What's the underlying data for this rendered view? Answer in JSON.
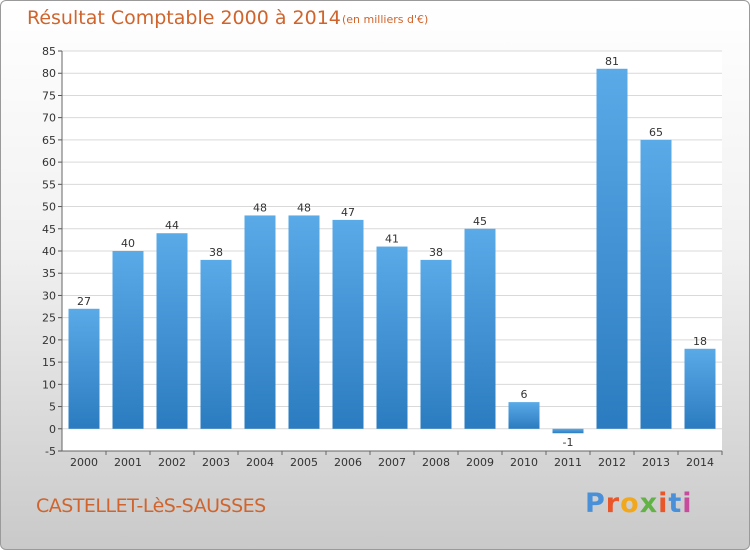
{
  "header": {
    "title": "Résultat Comptable 2000 à 2014",
    "subtitle": "(en milliers d'€)"
  },
  "footer": {
    "town": "CASTELLET-LèS-SAUSSES",
    "logo": "Proxiti",
    "logo_colors": [
      "#4a90d9",
      "#e8562a",
      "#f2a81d",
      "#62b245",
      "#e8562a",
      "#4a90d9",
      "#c84c9e"
    ]
  },
  "chart_data": {
    "type": "bar",
    "categories": [
      "2000",
      "2001",
      "2002",
      "2003",
      "2004",
      "2005",
      "2006",
      "2007",
      "2008",
      "2009",
      "2010",
      "2011",
      "2012",
      "2013",
      "2014"
    ],
    "values": [
      27,
      40,
      44,
      38,
      48,
      48,
      47,
      41,
      38,
      45,
      6,
      -1,
      81,
      65,
      18
    ],
    "title": "Résultat Comptable 2000 à 2014",
    "subtitle": "(en milliers d'€)",
    "ylim": [
      -5,
      85
    ],
    "yticks": [
      -5,
      0,
      5,
      10,
      15,
      20,
      25,
      30,
      35,
      40,
      45,
      50,
      55,
      60,
      65,
      70,
      75,
      80,
      85
    ],
    "grid": true,
    "bar_color": "#5aaae8",
    "bar_color_dark": "#2b7bc0",
    "grid_color": "#d9d9d9"
  }
}
